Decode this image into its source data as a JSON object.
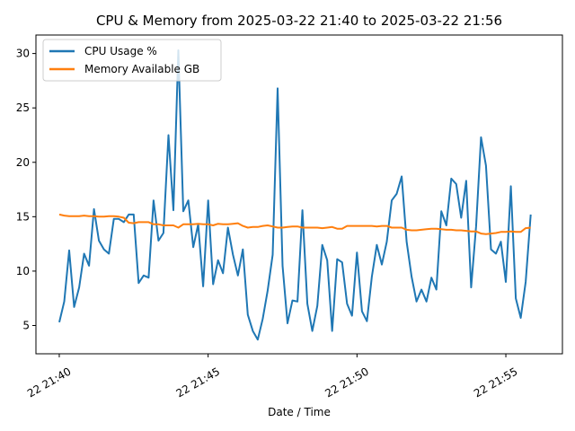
{
  "chart_data": {
    "type": "line",
    "title": "CPU & Memory from 2025-03-22 21:40 to 2025-03-22 21:56",
    "xlabel": "Date / Time",
    "ylabel": "",
    "x_start": "2025-03-22 21:40",
    "x_end": "2025-03-22 21:56",
    "x_sample_interval_seconds": 10,
    "xlim": [
      "2025-03-22 21:39:13",
      "2025-03-22 21:56:54"
    ],
    "ylim": [
      2.4,
      31.7
    ],
    "x_ticks": [
      {
        "value": "2025-03-22 21:40",
        "label": "22 21:40"
      },
      {
        "value": "2025-03-22 21:45",
        "label": "22 21:45"
      },
      {
        "value": "2025-03-22 21:50",
        "label": "22 21:50"
      },
      {
        "value": "2025-03-22 21:55",
        "label": "22 21:55"
      }
    ],
    "y_ticks": [
      5,
      10,
      15,
      20,
      25,
      30
    ],
    "grid": false,
    "legend_position": "top-left",
    "series": [
      {
        "name": "CPU Usage %",
        "color": "#1f77b4",
        "values": [
          5.3,
          7.2,
          11.9,
          6.7,
          8.5,
          11.6,
          10.5,
          15.7,
          12.8,
          12.0,
          11.6,
          14.8,
          14.8,
          14.5,
          15.2,
          15.2,
          8.9,
          9.6,
          9.4,
          16.5,
          12.8,
          13.5,
          22.5,
          15.6,
          30.3,
          15.5,
          16.5,
          12.2,
          14.3,
          8.6,
          16.5,
          8.8,
          11.0,
          9.8,
          14.0,
          11.5,
          9.6,
          12.0,
          6.0,
          4.5,
          3.7,
          5.6,
          8.2,
          11.5,
          26.8,
          10.5,
          5.2,
          7.3,
          7.2,
          15.6,
          7.0,
          4.5,
          6.8,
          12.4,
          11.0,
          4.5,
          11.1,
          10.8,
          7.0,
          5.9,
          11.7,
          6.3,
          5.4,
          9.5,
          12.4,
          10.6,
          12.7,
          16.5,
          17.1,
          18.7,
          12.7,
          9.5,
          7.2,
          8.3,
          7.2,
          9.4,
          8.3,
          15.5,
          14.2,
          18.5,
          18.0,
          14.9,
          18.3,
          8.5,
          14.1,
          22.3,
          19.7,
          12.0,
          11.6,
          12.7,
          9.0,
          17.8,
          7.5,
          5.7,
          9.0,
          15.2
        ]
      },
      {
        "name": "Memory Available GB",
        "color": "#ff7f0e",
        "values": [
          15.2,
          15.1,
          15.05,
          15.05,
          15.05,
          15.1,
          15.05,
          15.05,
          15.0,
          15.0,
          15.05,
          15.05,
          15.0,
          14.9,
          14.45,
          14.4,
          14.5,
          14.5,
          14.5,
          14.3,
          14.3,
          14.2,
          14.2,
          14.2,
          14.0,
          14.3,
          14.3,
          14.3,
          14.35,
          14.3,
          14.3,
          14.2,
          14.35,
          14.3,
          14.3,
          14.35,
          14.4,
          14.15,
          14.0,
          14.05,
          14.05,
          14.15,
          14.2,
          14.1,
          14.0,
          14.0,
          14.05,
          14.1,
          14.1,
          14.0,
          14.0,
          14.0,
          14.0,
          13.95,
          14.0,
          14.05,
          13.9,
          13.9,
          14.15,
          14.15,
          14.15,
          14.15,
          14.15,
          14.15,
          14.1,
          14.15,
          14.15,
          14.0,
          14.0,
          14.0,
          13.8,
          13.75,
          13.75,
          13.8,
          13.85,
          13.9,
          13.9,
          13.85,
          13.8,
          13.8,
          13.75,
          13.75,
          13.7,
          13.65,
          13.65,
          13.45,
          13.4,
          13.45,
          13.5,
          13.6,
          13.6,
          13.65,
          13.6,
          13.6,
          13.95,
          14.0
        ]
      }
    ]
  }
}
